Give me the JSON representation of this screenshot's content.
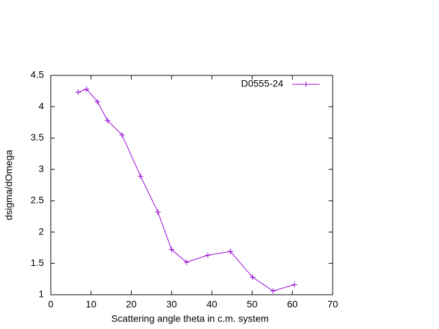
{
  "chart_data": {
    "type": "line",
    "x_label": "Scattering angle theta in c.m. system",
    "y_label": "dsigma/dOmega",
    "xlim": [
      0,
      70
    ],
    "xticks": [
      0,
      10,
      20,
      30,
      40,
      50,
      60,
      70
    ],
    "ylim": [
      1,
      4.5
    ],
    "yticks": [
      1,
      1.5,
      2,
      2.5,
      3,
      3.5,
      4,
      4.5
    ],
    "legend_position": "top-right",
    "series": [
      {
        "name": "D0555-24",
        "color": "#9400d3",
        "x": [
          6.8,
          8.9,
          11.6,
          14.1,
          17.7,
          22.3,
          26.6,
          30.0,
          33.7,
          39.0,
          44.6,
          50.1,
          55.2,
          60.5
        ],
        "values": [
          4.23,
          4.28,
          4.08,
          3.78,
          3.55,
          2.89,
          2.32,
          1.72,
          1.52,
          1.63,
          1.69,
          1.28,
          1.06,
          1.16
        ]
      }
    ]
  }
}
